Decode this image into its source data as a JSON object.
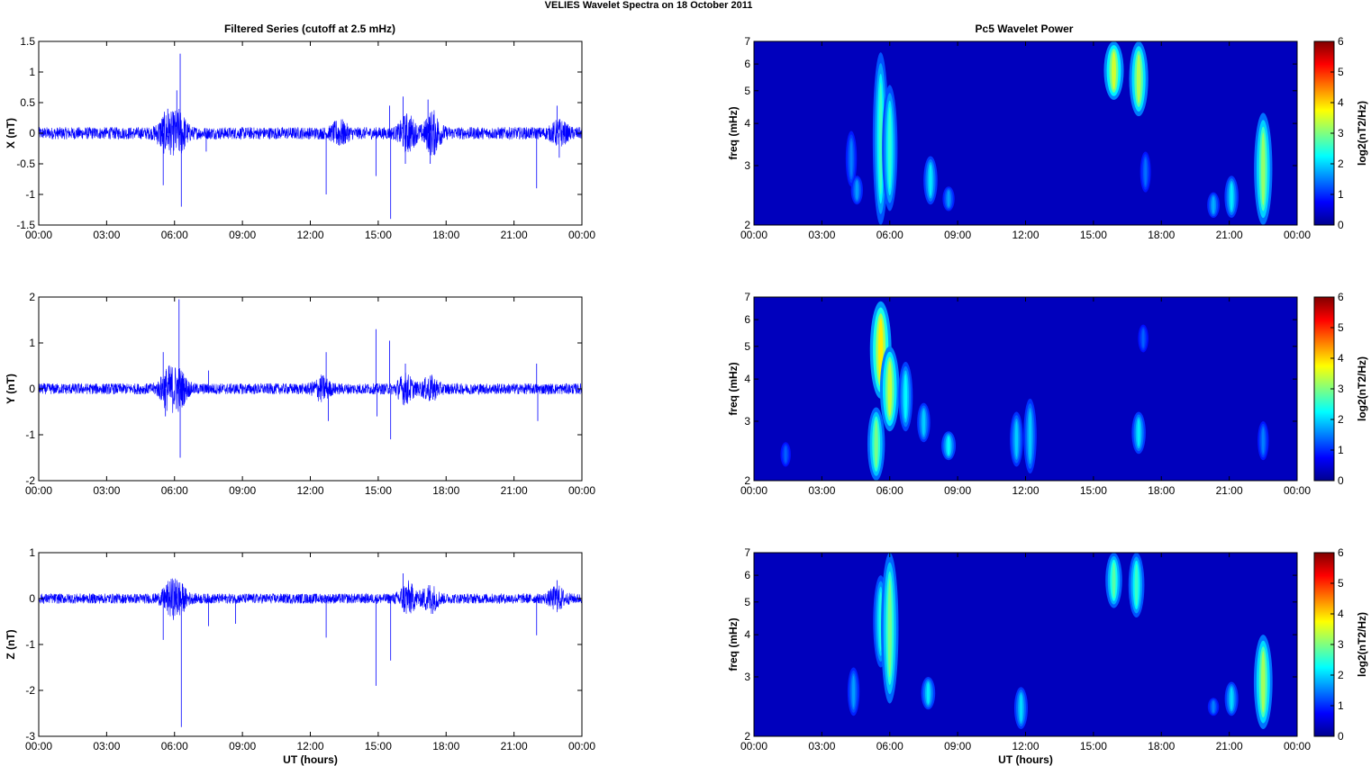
{
  "figure": {
    "suptitle": "VELIES Wavelet Spectra on 18 October   2011",
    "left_title": "Filtered Series (cutoff at 2.5 mHz)",
    "right_title": "Pc5 Wavelet Power",
    "xlabel": "UT (hours)"
  },
  "chart_data": [
    {
      "type": "line",
      "title": "Filtered Series (cutoff at 2.5 mHz)",
      "xlabel": "",
      "ylabel": "X (nT)",
      "x_unit": "UT hours",
      "xlim": [
        0,
        24
      ],
      "xticks": [
        "00:00",
        "03:00",
        "06:00",
        "09:00",
        "12:00",
        "15:00",
        "18:00",
        "21:00",
        "00:00"
      ],
      "ylim": [
        -1.5,
        1.5
      ],
      "yticks": [
        "-1.5",
        "-1",
        "-0.5",
        "0",
        "0.5",
        "1",
        "1.5"
      ],
      "line_color": "#0000ff",
      "base_noise_amplitude": 0.1,
      "bursts": [
        {
          "x": 5.6,
          "amplitude": 0.25
        },
        {
          "x": 6.2,
          "amplitude": 0.3
        },
        {
          "x": 13.3,
          "amplitude": 0.15
        },
        {
          "x": 16.3,
          "amplitude": 0.25
        },
        {
          "x": 17.4,
          "amplitude": 0.3
        },
        {
          "x": 23.0,
          "amplitude": 0.15
        }
      ],
      "spikes": [
        {
          "x": 5.5,
          "y": -0.85
        },
        {
          "x": 5.7,
          "y": 0.4
        },
        {
          "x": 6.1,
          "y": 0.7
        },
        {
          "x": 6.25,
          "y": 1.3
        },
        {
          "x": 6.3,
          "y": -1.2
        },
        {
          "x": 7.4,
          "y": -0.3
        },
        {
          "x": 12.7,
          "y": -1.0
        },
        {
          "x": 14.9,
          "y": -0.7
        },
        {
          "x": 15.55,
          "y": -1.4
        },
        {
          "x": 15.5,
          "y": 0.45
        },
        {
          "x": 16.1,
          "y": 0.6
        },
        {
          "x": 16.2,
          "y": -0.5
        },
        {
          "x": 17.2,
          "y": 0.55
        },
        {
          "x": 17.3,
          "y": -0.5
        },
        {
          "x": 22.0,
          "y": -0.9
        },
        {
          "x": 22.9,
          "y": 0.45
        },
        {
          "x": 23.0,
          "y": -0.4
        }
      ]
    },
    {
      "type": "line",
      "title": "",
      "xlabel": "",
      "ylabel": "Y (nT)",
      "x_unit": "UT hours",
      "xlim": [
        0,
        24
      ],
      "xticks": [
        "00:00",
        "03:00",
        "06:00",
        "09:00",
        "12:00",
        "15:00",
        "18:00",
        "21:00",
        "00:00"
      ],
      "ylim": [
        -2,
        2
      ],
      "yticks": [
        "-2",
        "-1",
        "0",
        "1",
        "2"
      ],
      "line_color": "#0000ff",
      "base_noise_amplitude": 0.12,
      "bursts": [
        {
          "x": 5.7,
          "amplitude": 0.35
        },
        {
          "x": 6.2,
          "amplitude": 0.35
        },
        {
          "x": 12.5,
          "amplitude": 0.2
        },
        {
          "x": 16.2,
          "amplitude": 0.25
        },
        {
          "x": 17.3,
          "amplitude": 0.2
        }
      ],
      "spikes": [
        {
          "x": 5.5,
          "y": 0.8
        },
        {
          "x": 5.6,
          "y": -0.6
        },
        {
          "x": 6.2,
          "y": 1.95
        },
        {
          "x": 6.25,
          "y": -1.5
        },
        {
          "x": 7.5,
          "y": 0.4
        },
        {
          "x": 12.7,
          "y": 0.8
        },
        {
          "x": 12.8,
          "y": -0.7
        },
        {
          "x": 14.9,
          "y": 1.3
        },
        {
          "x": 14.95,
          "y": -0.6
        },
        {
          "x": 15.5,
          "y": 1.05
        },
        {
          "x": 15.55,
          "y": -1.1
        },
        {
          "x": 16.2,
          "y": 0.55
        },
        {
          "x": 22.0,
          "y": 0.55
        },
        {
          "x": 22.05,
          "y": -0.7
        }
      ]
    },
    {
      "type": "line",
      "title": "",
      "xlabel": "UT (hours)",
      "ylabel": "Z (nT)",
      "x_unit": "UT hours",
      "xlim": [
        0,
        24
      ],
      "xticks": [
        "00:00",
        "03:00",
        "06:00",
        "09:00",
        "12:00",
        "15:00",
        "18:00",
        "21:00",
        "00:00"
      ],
      "ylim": [
        -3,
        1
      ],
      "yticks": [
        "-3",
        "-2",
        "-1",
        "0",
        "1"
      ],
      "line_color": "#0000ff",
      "base_noise_amplitude": 0.11,
      "bursts": [
        {
          "x": 5.8,
          "amplitude": 0.25
        },
        {
          "x": 6.2,
          "amplitude": 0.25
        },
        {
          "x": 16.3,
          "amplitude": 0.3
        },
        {
          "x": 17.3,
          "amplitude": 0.25
        },
        {
          "x": 22.9,
          "amplitude": 0.2
        }
      ],
      "spikes": [
        {
          "x": 5.5,
          "y": -0.9
        },
        {
          "x": 6.1,
          "y": 0.4
        },
        {
          "x": 6.3,
          "y": -2.8
        },
        {
          "x": 7.5,
          "y": -0.6
        },
        {
          "x": 8.7,
          "y": -0.55
        },
        {
          "x": 12.7,
          "y": -0.85
        },
        {
          "x": 14.9,
          "y": -1.9
        },
        {
          "x": 15.55,
          "y": -1.35
        },
        {
          "x": 16.1,
          "y": 0.55
        },
        {
          "x": 22.0,
          "y": -0.8
        },
        {
          "x": 22.9,
          "y": 0.4
        }
      ]
    },
    {
      "type": "heatmap",
      "title": "Pc5 Wavelet Power",
      "xlabel": "",
      "ylabel": "freq (mHz)",
      "x_unit": "UT hours",
      "xlim": [
        0,
        24
      ],
      "xticks": [
        "00:00",
        "03:00",
        "06:00",
        "09:00",
        "12:00",
        "15:00",
        "18:00",
        "21:00",
        "00:00"
      ],
      "y_scale": "log",
      "ylim": [
        2,
        7
      ],
      "yticks": [
        "2",
        "3",
        "4",
        "5",
        "6",
        "7"
      ],
      "colorbar": {
        "label": "log2(nT2/Hz)",
        "range": [
          0,
          6
        ],
        "ticks": [
          "0",
          "1",
          "2",
          "3",
          "4",
          "5",
          "6"
        ],
        "colormap": "jet"
      },
      "blobs": [
        {
          "t": 4.3,
          "f_lo": 2.6,
          "f_hi": 3.8,
          "power": 1.0
        },
        {
          "t": 4.55,
          "f_lo": 2.3,
          "f_hi": 2.8,
          "power": 1.2
        },
        {
          "t": 5.6,
          "f_lo": 2.0,
          "f_hi": 6.5,
          "power": 2.2
        },
        {
          "t": 6.0,
          "f_lo": 2.2,
          "f_hi": 5.2,
          "power": 2.1
        },
        {
          "t": 7.8,
          "f_lo": 2.3,
          "f_hi": 3.2,
          "power": 1.7
        },
        {
          "t": 8.6,
          "f_lo": 2.2,
          "f_hi": 2.6,
          "power": 1.2
        },
        {
          "t": 15.9,
          "f_lo": 4.7,
          "f_hi": 7.0,
          "power": 3.2
        },
        {
          "t": 17.0,
          "f_lo": 4.2,
          "f_hi": 7.0,
          "power": 3.0
        },
        {
          "t": 17.3,
          "f_lo": 2.5,
          "f_hi": 3.3,
          "power": 0.9
        },
        {
          "t": 20.3,
          "f_lo": 2.1,
          "f_hi": 2.5,
          "power": 1.3
        },
        {
          "t": 21.1,
          "f_lo": 2.1,
          "f_hi": 2.8,
          "power": 1.7
        },
        {
          "t": 22.5,
          "f_lo": 2.0,
          "f_hi": 4.3,
          "power": 2.8
        }
      ]
    },
    {
      "type": "heatmap",
      "title": "",
      "xlabel": "",
      "ylabel": "freq (mHz)",
      "x_unit": "UT hours",
      "xlim": [
        0,
        24
      ],
      "xticks": [
        "00:00",
        "03:00",
        "06:00",
        "09:00",
        "12:00",
        "15:00",
        "18:00",
        "21:00",
        "00:00"
      ],
      "y_scale": "log",
      "ylim": [
        2,
        7
      ],
      "yticks": [
        "2",
        "3",
        "4",
        "5",
        "6",
        "7"
      ],
      "colorbar": {
        "label": "log2(nT2/Hz)",
        "range": [
          0,
          6
        ],
        "ticks": [
          "0",
          "1",
          "2",
          "3",
          "4",
          "5",
          "6"
        ],
        "colormap": "jet"
      },
      "blobs": [
        {
          "t": 1.4,
          "f_lo": 2.2,
          "f_hi": 2.6,
          "power": 0.8
        },
        {
          "t": 5.4,
          "f_lo": 2.0,
          "f_hi": 3.3,
          "power": 2.6
        },
        {
          "t": 5.6,
          "f_lo": 3.5,
          "f_hi": 6.8,
          "power": 3.6
        },
        {
          "t": 6.0,
          "f_lo": 2.8,
          "f_hi": 5.0,
          "power": 3.1
        },
        {
          "t": 6.7,
          "f_lo": 2.8,
          "f_hi": 4.5,
          "power": 1.8
        },
        {
          "t": 7.5,
          "f_lo": 2.6,
          "f_hi": 3.4,
          "power": 1.5
        },
        {
          "t": 8.6,
          "f_lo": 2.3,
          "f_hi": 2.8,
          "power": 1.8
        },
        {
          "t": 11.6,
          "f_lo": 2.2,
          "f_hi": 3.2,
          "power": 1.5
        },
        {
          "t": 12.2,
          "f_lo": 2.1,
          "f_hi": 3.5,
          "power": 1.5
        },
        {
          "t": 17.0,
          "f_lo": 2.4,
          "f_hi": 3.2,
          "power": 1.7
        },
        {
          "t": 17.2,
          "f_lo": 4.8,
          "f_hi": 5.8,
          "power": 0.8
        },
        {
          "t": 22.5,
          "f_lo": 2.3,
          "f_hi": 3.0,
          "power": 1.0
        }
      ]
    },
    {
      "type": "heatmap",
      "title": "",
      "xlabel": "UT (hours)",
      "ylabel": "freq (mHz)",
      "x_unit": "UT hours",
      "xlim": [
        0,
        24
      ],
      "xticks": [
        "00:00",
        "03:00",
        "06:00",
        "09:00",
        "12:00",
        "15:00",
        "18:00",
        "21:00",
        "00:00"
      ],
      "y_scale": "log",
      "ylim": [
        2,
        7
      ],
      "yticks": [
        "2",
        "3",
        "4",
        "5",
        "6",
        "7"
      ],
      "colorbar": {
        "label": "log2(nT2/Hz)",
        "range": [
          0,
          6
        ],
        "ticks": [
          "0",
          "1",
          "2",
          "3",
          "4",
          "5",
          "6"
        ],
        "colormap": "jet"
      },
      "blobs": [
        {
          "t": 4.4,
          "f_lo": 2.3,
          "f_hi": 3.2,
          "power": 1.2
        },
        {
          "t": 5.6,
          "f_lo": 3.2,
          "f_hi": 6.0,
          "power": 2.0
        },
        {
          "t": 6.0,
          "f_lo": 2.5,
          "f_hi": 7.0,
          "power": 2.6
        },
        {
          "t": 7.7,
          "f_lo": 2.4,
          "f_hi": 3.0,
          "power": 1.7
        },
        {
          "t": 11.8,
          "f_lo": 2.1,
          "f_hi": 2.8,
          "power": 1.6
        },
        {
          "t": 15.9,
          "f_lo": 4.8,
          "f_hi": 7.0,
          "power": 2.4
        },
        {
          "t": 16.9,
          "f_lo": 4.5,
          "f_hi": 7.0,
          "power": 2.2
        },
        {
          "t": 20.3,
          "f_lo": 2.3,
          "f_hi": 2.6,
          "power": 1.0
        },
        {
          "t": 21.1,
          "f_lo": 2.3,
          "f_hi": 2.9,
          "power": 1.6
        },
        {
          "t": 22.5,
          "f_lo": 2.1,
          "f_hi": 4.0,
          "power": 2.9
        }
      ]
    }
  ]
}
